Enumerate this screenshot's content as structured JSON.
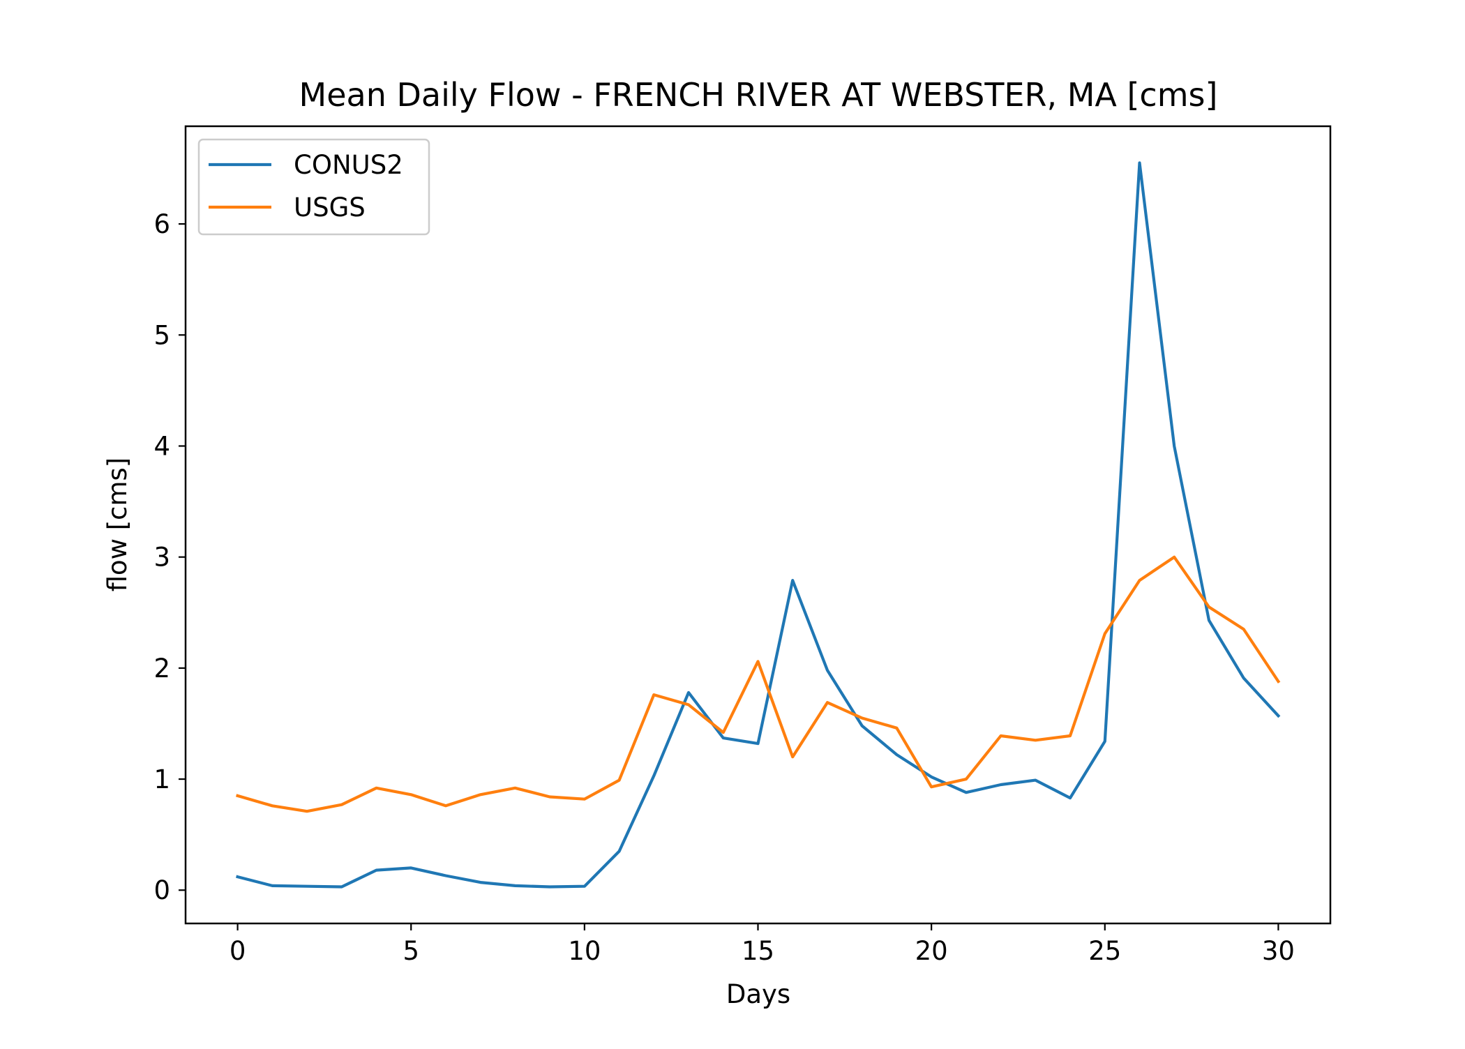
{
  "chart_data": {
    "type": "line",
    "title": "Mean Daily Flow - FRENCH RIVER AT WEBSTER, MA [cms]",
    "xlabel": "Days",
    "ylabel": "flow [cms]",
    "xlim": [
      -1.5,
      31.5
    ],
    "ylim": [
      -0.3,
      6.88
    ],
    "xticks": [
      0,
      5,
      10,
      15,
      20,
      25,
      30
    ],
    "yticks": [
      0,
      1,
      2,
      3,
      4,
      5,
      6
    ],
    "grid": false,
    "legend_position": "upper left",
    "x": [
      0,
      1,
      2,
      3,
      4,
      5,
      6,
      7,
      8,
      9,
      10,
      11,
      12,
      13,
      14,
      15,
      16,
      17,
      18,
      19,
      20,
      21,
      22,
      23,
      24,
      25,
      26,
      27,
      28,
      29,
      30
    ],
    "series": [
      {
        "name": "CONUS2",
        "color": "#1f77b4",
        "values": [
          0.12,
          0.04,
          0.035,
          0.03,
          0.18,
          0.2,
          0.13,
          0.07,
          0.04,
          0.03,
          0.035,
          0.35,
          1.03,
          1.78,
          1.37,
          1.32,
          2.79,
          1.98,
          1.48,
          1.22,
          1.02,
          0.88,
          0.95,
          0.99,
          0.83,
          1.34,
          6.55,
          4.0,
          2.43,
          1.91,
          1.57
        ]
      },
      {
        "name": "USGS",
        "color": "#ff7f0e",
        "values": [
          0.85,
          0.76,
          0.71,
          0.77,
          0.92,
          0.86,
          0.76,
          0.86,
          0.92,
          0.84,
          0.82,
          0.99,
          1.76,
          1.67,
          1.42,
          2.06,
          1.2,
          1.69,
          1.55,
          1.46,
          0.93,
          1.0,
          1.39,
          1.35,
          1.39,
          2.31,
          2.79,
          3.0,
          2.55,
          2.35,
          1.88
        ]
      }
    ]
  }
}
